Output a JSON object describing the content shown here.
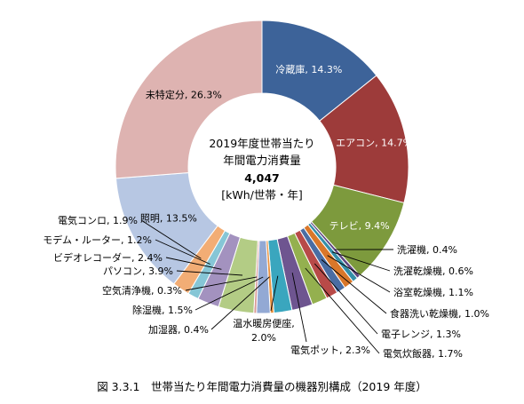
{
  "chart_data": {
    "type": "pie",
    "donut": true,
    "center": {
      "line1": "2019年度世帯当たり",
      "line2": "年間電力消費量",
      "value": "4,047",
      "unit": "[kWh/世帯・年]"
    },
    "caption": "図 3.3.1　世帯当たり年間電力消費量の機器別構成（2019 年度）",
    "slices": [
      {
        "label": "冷蔵庫",
        "value": 14.3,
        "display": "冷蔵庫, 14.3%",
        "color": "#3d6399",
        "labelColor": "#ffffff"
      },
      {
        "label": "エアコン",
        "value": 14.7,
        "display": "エアコン, 14.7%",
        "color": "#9d3b3a",
        "labelColor": "#ffffff"
      },
      {
        "label": "テレビ",
        "value": 9.4,
        "display": "テレビ, 9.4%",
        "color": "#7d9a3d",
        "labelColor": "#ffffff"
      },
      {
        "label": "洗濯機",
        "value": 0.4,
        "display": "洗濯機, 0.4%",
        "color": "#5e4680"
      },
      {
        "label": "洗濯乾燥機",
        "value": 0.6,
        "display": "洗濯乾燥機, 0.6%",
        "color": "#358fa8"
      },
      {
        "label": "浴室乾燥機",
        "value": 1.1,
        "display": "浴室乾燥機, 1.1%",
        "color": "#d9772a"
      },
      {
        "label": "食器洗い乾燥機",
        "value": 1.0,
        "display": "食器洗い乾燥機, 1.0%",
        "color": "#4a6da3"
      },
      {
        "label": "電子レンジ",
        "value": 1.3,
        "display": "電子レンジ, 1.3%",
        "color": "#b84a48"
      },
      {
        "label": "電気炊飯器",
        "value": 1.7,
        "display": "電気炊飯器, 1.7%",
        "color": "#94b04f"
      },
      {
        "label": "電気ポット",
        "value": 2.3,
        "display": "電気ポット, 2.3%",
        "color": "#6e5590"
      },
      {
        "label": "温水暖房便座",
        "value": 2.0,
        "display": "温水暖房便座,\n2.0%",
        "color": "#3aa6be"
      },
      {
        "label": "加湿器",
        "value": 0.4,
        "display": "加湿器, 0.4%",
        "color": "#e8913f"
      },
      {
        "label": "除湿機",
        "value": 1.5,
        "display": "除湿機, 1.5%",
        "color": "#93a9d4"
      },
      {
        "label": "空気清浄機",
        "value": 0.3,
        "display": "空気清浄機, 0.3%",
        "color": "#d99a98"
      },
      {
        "label": "パソコン",
        "value": 3.9,
        "display": "パソコン, 3.9%",
        "color": "#b3cc85"
      },
      {
        "label": "ビデオレコーダー",
        "value": 2.4,
        "display": "ビデオレコーダー, 2.4%",
        "color": "#a392bf"
      },
      {
        "label": "モデム・ルーター",
        "value": 1.2,
        "display": "モデム・ルーター, 1.2%",
        "color": "#86c6d6"
      },
      {
        "label": "電気コンロ",
        "value": 1.9,
        "display": "電気コンロ, 1.9%",
        "color": "#f2ad75"
      },
      {
        "label": "照明",
        "value": 13.5,
        "display": "照明, 13.5%",
        "color": "#b7c7e3"
      },
      {
        "label": "未特定分",
        "value": 26.3,
        "display": "未特定分, 26.3%",
        "color": "#deb3b1"
      }
    ]
  }
}
